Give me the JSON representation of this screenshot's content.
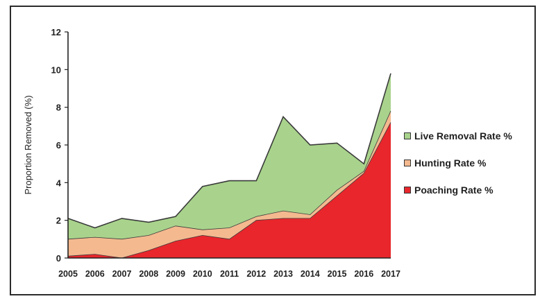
{
  "chart_data": {
    "type": "area",
    "stacked": true,
    "ylabel": "Proportion Removed (%)",
    "xlabel": "",
    "ylim": [
      0,
      12
    ],
    "yticks": [
      "0",
      "2",
      "4",
      "6",
      "8",
      "10",
      "12"
    ],
    "categories": [
      "2005",
      "2006",
      "2007",
      "2008",
      "2009",
      "2010",
      "2011",
      "2012",
      "2013",
      "2014",
      "2015",
      "2016",
      "2017"
    ],
    "series": [
      {
        "name": "Poaching Rate %",
        "color": "#e8262c",
        "values": [
          0.1,
          0.2,
          0.0,
          0.4,
          0.9,
          1.2,
          1.0,
          2.0,
          2.1,
          2.1,
          3.3,
          4.5,
          7.2
        ]
      },
      {
        "name": "Hunting Rate %",
        "color": "#f4b98f",
        "values": [
          0.9,
          0.9,
          1.0,
          0.8,
          0.8,
          0.3,
          0.6,
          0.2,
          0.4,
          0.2,
          0.3,
          0.1,
          0.6
        ]
      },
      {
        "name": "Live Removal Rate %",
        "color": "#a9d38c",
        "values": [
          1.1,
          0.5,
          1.1,
          0.7,
          0.5,
          2.3,
          2.5,
          1.9,
          5.0,
          3.7,
          2.5,
          0.4,
          2.0
        ]
      }
    ],
    "legend_position": "right",
    "legend_order": [
      "Live Removal Rate %",
      "Hunting Rate %",
      "Poaching Rate %"
    ]
  }
}
